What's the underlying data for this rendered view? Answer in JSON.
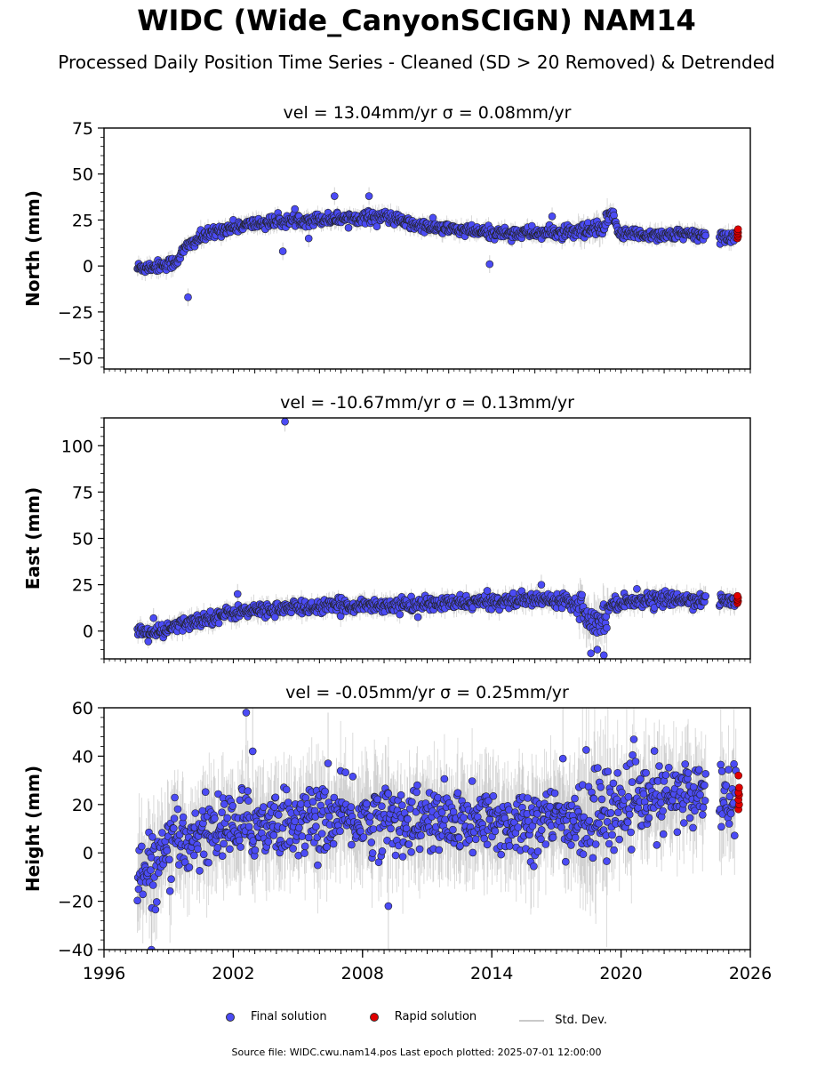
{
  "title": "WIDC (Wide_CanyonSCIGN) NAM14",
  "subtitle": "Processed Daily Position Time Series - Cleaned (SD > 20 Removed) & Detrended",
  "legend": {
    "final": "Final solution",
    "rapid": "Rapid solution",
    "stddev": "Std. Dev."
  },
  "footer": "Source file: WIDC.cwu.nam14.pos  Last epoch plotted: 2025-07-01 12:00:00",
  "colors": {
    "final": "#4b4bf5",
    "rapid": "#e00000",
    "stddev": "#b0b0b0"
  },
  "chart_data": [
    {
      "type": "scatter",
      "title": "vel = 13.04mm/yr   σ = 0.08mm/yr",
      "ylabel": "North (mm)",
      "xlim": [
        1996,
        2026
      ],
      "ylim": [
        -56,
        75
      ],
      "yticks": [
        75,
        50,
        25,
        0,
        -25,
        -50
      ],
      "ytick_labels": [
        "75",
        "50",
        "25",
        "0",
        "−25",
        "−50"
      ],
      "trend": [
        [
          1997.6,
          -1
        ],
        [
          1998.5,
          0
        ],
        [
          1999.3,
          2
        ],
        [
          1999.8,
          10
        ],
        [
          2000.4,
          15
        ],
        [
          2001.5,
          20
        ],
        [
          2003,
          23
        ],
        [
          2005,
          25
        ],
        [
          2007,
          26
        ],
        [
          2009,
          27
        ],
        [
          2010.5,
          22
        ],
        [
          2012,
          20
        ],
        [
          2014,
          18
        ],
        [
          2016,
          18
        ],
        [
          2018,
          18
        ],
        [
          2019.2,
          20
        ],
        [
          2019.6,
          30
        ],
        [
          2019.9,
          18
        ],
        [
          2021,
          17
        ],
        [
          2023,
          17
        ],
        [
          2024.5,
          16
        ],
        [
          2025.5,
          16
        ]
      ],
      "scatter_spread": 1.6,
      "outliers": [
        [
          1999.9,
          -17
        ],
        [
          2004.3,
          8
        ],
        [
          2006.7,
          38
        ],
        [
          2008.3,
          38
        ],
        [
          2013.9,
          1
        ],
        [
          2005.5,
          15
        ],
        [
          2016.8,
          27
        ]
      ],
      "rapid": {
        "x": 2025.4,
        "values": [
          15,
          16,
          17,
          18,
          19,
          20
        ]
      }
    },
    {
      "type": "scatter",
      "title": "vel = -10.67mm/yr   σ = 0.13mm/yr",
      "ylabel": "East (mm)",
      "xlim": [
        1996,
        2026
      ],
      "ylim": [
        -15,
        115
      ],
      "yticks": [
        100,
        75,
        50,
        25,
        0
      ],
      "ytick_labels": [
        "100",
        "75",
        "50",
        "25",
        "0"
      ],
      "trend": [
        [
          1997.6,
          0
        ],
        [
          1998.5,
          -1
        ],
        [
          1999.5,
          3
        ],
        [
          2000.5,
          6
        ],
        [
          2002,
          10
        ],
        [
          2004,
          12
        ],
        [
          2006,
          13
        ],
        [
          2008,
          14
        ],
        [
          2010,
          14
        ],
        [
          2012,
          15
        ],
        [
          2014,
          16
        ],
        [
          2016,
          17
        ],
        [
          2017.5,
          17
        ],
        [
          2018.2,
          13
        ],
        [
          2018.5,
          8
        ],
        [
          2019,
          4
        ],
        [
          2019.3,
          10
        ],
        [
          2019.6,
          15
        ],
        [
          2021,
          17
        ],
        [
          2023,
          17
        ],
        [
          2025.5,
          16
        ]
      ],
      "scatter_spread": 1.8,
      "outliers": [
        [
          2004.4,
          113
        ],
        [
          2002.2,
          20
        ],
        [
          2016.3,
          25
        ],
        [
          1998.3,
          7
        ],
        [
          2018.6,
          -12
        ],
        [
          2018.9,
          -10
        ],
        [
          2019.2,
          -13
        ]
      ],
      "rapid": {
        "x": 2025.4,
        "values": [
          15,
          16,
          17,
          18,
          19
        ]
      }
    },
    {
      "type": "scatter",
      "title": "vel = -0.05mm/yr   σ = 0.25mm/yr",
      "ylabel": "Height (mm)",
      "xlim": [
        1996,
        2026
      ],
      "ylim": [
        -40,
        60
      ],
      "yticks": [
        60,
        40,
        20,
        0,
        -20,
        -40
      ],
      "ytick_labels": [
        "60",
        "40",
        "20",
        "0",
        "−20",
        "−40"
      ],
      "xticks": [
        1996,
        2002,
        2008,
        2014,
        2020,
        2026
      ],
      "xtick_labels": [
        "1996",
        "2002",
        "2008",
        "2014",
        "2020",
        "2026"
      ],
      "trend": [
        [
          1997.6,
          -10
        ],
        [
          1998.5,
          -5
        ],
        [
          1999.5,
          5
        ],
        [
          2001,
          10
        ],
        [
          2003,
          12
        ],
        [
          2005,
          13
        ],
        [
          2007,
          14
        ],
        [
          2009,
          14
        ],
        [
          2011,
          13
        ],
        [
          2013,
          12
        ],
        [
          2015,
          13
        ],
        [
          2017,
          13
        ],
        [
          2018.5,
          14
        ],
        [
          2019.5,
          18
        ],
        [
          2021,
          21
        ],
        [
          2023,
          24
        ],
        [
          2025,
          25
        ]
      ],
      "scatter_spread": 7,
      "outliers": [
        [
          2002.6,
          58
        ],
        [
          2002.9,
          42
        ],
        [
          2009.2,
          -22
        ],
        [
          1998.2,
          -40
        ],
        [
          2017.3,
          39
        ],
        [
          2006.4,
          37
        ]
      ],
      "rapid": {
        "x": 2025.45,
        "values": [
          18,
          20,
          22,
          24,
          25,
          27,
          32
        ]
      }
    }
  ]
}
